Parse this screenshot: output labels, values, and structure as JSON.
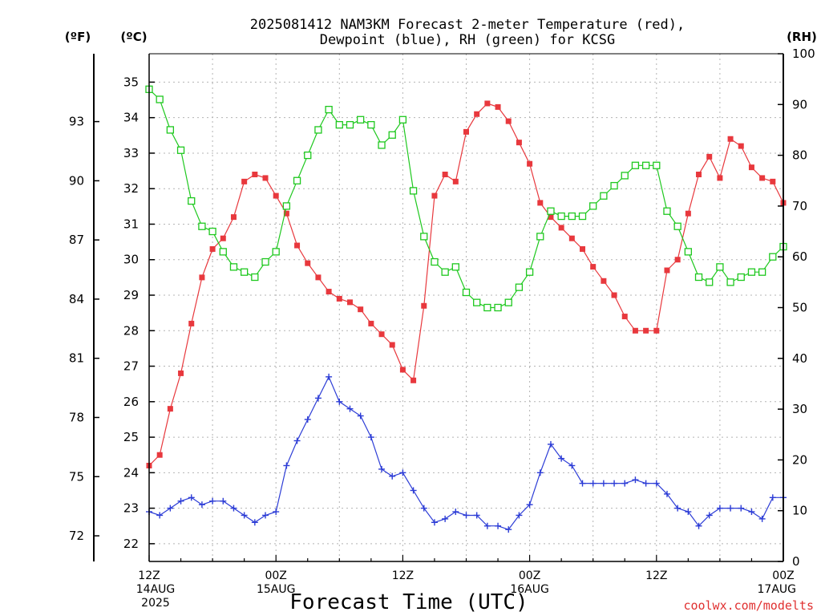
{
  "chart_data": {
    "type": "line",
    "title_lines": [
      "2025081412 NAM3KM Forecast 2-meter Temperature (red),",
      "Dewpoint (blue), RH (green) for KCSG"
    ],
    "xlabel": "Forecast Time (UTC)",
    "unit_labels": {
      "fahrenheit": "(ºF)",
      "celsius": "(ºC)",
      "rh": "(RH)"
    },
    "credit": "coolwx.com/modelts",
    "grid": true,
    "x_range_hours": [
      0,
      60
    ],
    "y_celsius_range": [
      21.5,
      35.8
    ],
    "y_rh_range": [
      0,
      100
    ],
    "celsius_ticks": [
      22,
      23,
      24,
      25,
      26,
      27,
      28,
      29,
      30,
      31,
      32,
      33,
      34,
      35
    ],
    "fahrenheit_ticks": [
      72,
      75,
      78,
      81,
      84,
      87,
      90,
      93
    ],
    "rh_ticks": [
      0,
      10,
      20,
      30,
      40,
      50,
      60,
      70,
      80,
      90,
      100
    ],
    "x_ticks": [
      {
        "hour": 0,
        "lines": [
          "12Z",
          "14AUG",
          "2025"
        ]
      },
      {
        "hour": 12,
        "lines": [
          "00Z",
          "15AUG"
        ]
      },
      {
        "hour": 24,
        "lines": [
          "12Z"
        ]
      },
      {
        "hour": 36,
        "lines": [
          "00Z",
          "16AUG"
        ]
      },
      {
        "hour": 48,
        "lines": [
          "12Z"
        ]
      },
      {
        "hour": 60,
        "lines": [
          "00Z",
          "17AUG"
        ]
      }
    ],
    "series": [
      {
        "name": "Temperature",
        "color": "#e8383d",
        "axis": "celsius",
        "marker": "filled-square",
        "x": [
          0,
          1,
          2,
          3,
          4,
          5,
          6,
          7,
          8,
          9,
          10,
          11,
          12,
          13,
          14,
          15,
          16,
          17,
          18,
          19,
          20,
          21,
          22,
          23,
          24,
          25,
          26,
          27,
          28,
          29,
          30,
          31,
          32,
          33,
          34,
          35,
          36,
          37,
          38,
          39,
          40,
          41,
          42,
          43,
          44,
          45,
          46,
          47,
          48,
          49,
          50,
          51,
          52,
          53,
          54,
          55,
          56,
          57,
          58,
          59,
          60
        ],
        "values": [
          24.2,
          24.5,
          25.8,
          26.8,
          28.2,
          29.5,
          30.3,
          30.6,
          31.2,
          32.2,
          32.4,
          32.3,
          31.8,
          31.3,
          30.4,
          29.9,
          29.5,
          29.1,
          28.9,
          28.8,
          28.6,
          28.2,
          27.9,
          27.6,
          26.9,
          26.6,
          28.7,
          31.8,
          32.4,
          32.2,
          33.6,
          34.1,
          34.4,
          34.3,
          33.9,
          33.3,
          32.7,
          31.6,
          31.2,
          30.9,
          30.6,
          30.3,
          29.8,
          29.4,
          29.0,
          28.4,
          28.0,
          28.0,
          28.0,
          29.7,
          30.0,
          31.3,
          32.4,
          32.9,
          32.3,
          33.4,
          33.2,
          32.6,
          32.3,
          32.2,
          31.6
        ]
      },
      {
        "name": "Dewpoint",
        "color": "#2c3cd6",
        "axis": "celsius",
        "marker": "plus",
        "x": [
          0,
          1,
          2,
          3,
          4,
          5,
          6,
          7,
          8,
          9,
          10,
          11,
          12,
          13,
          14,
          15,
          16,
          17,
          18,
          19,
          20,
          21,
          22,
          23,
          24,
          25,
          26,
          27,
          28,
          29,
          30,
          31,
          32,
          33,
          34,
          35,
          36,
          37,
          38,
          39,
          40,
          41,
          42,
          43,
          44,
          45,
          46,
          47,
          48,
          49,
          50,
          51,
          52,
          53,
          54,
          55,
          56,
          57,
          58,
          59,
          60
        ],
        "values": [
          22.9,
          22.8,
          23.0,
          23.2,
          23.3,
          23.1,
          23.2,
          23.2,
          23.0,
          22.8,
          22.6,
          22.8,
          22.9,
          24.2,
          24.9,
          25.5,
          26.1,
          26.7,
          26.0,
          25.8,
          25.6,
          25.0,
          24.1,
          23.9,
          24.0,
          23.5,
          23.0,
          22.6,
          22.7,
          22.9,
          22.8,
          22.8,
          22.5,
          22.5,
          22.4,
          22.8,
          23.1,
          24.0,
          24.8,
          24.4,
          24.2,
          23.7,
          23.7,
          23.7,
          23.7,
          23.7,
          23.8,
          23.7,
          23.7,
          23.4,
          23.0,
          22.9,
          22.5,
          22.8,
          23.0,
          23.0,
          23.0,
          22.9,
          22.7,
          23.3,
          23.3
        ]
      },
      {
        "name": "RH",
        "color": "#1ec81e",
        "axis": "rh",
        "marker": "open-square",
        "x": [
          0,
          1,
          2,
          3,
          4,
          5,
          6,
          7,
          8,
          9,
          10,
          11,
          12,
          13,
          14,
          15,
          16,
          17,
          18,
          19,
          20,
          21,
          22,
          23,
          24,
          25,
          26,
          27,
          28,
          29,
          30,
          31,
          32,
          33,
          34,
          35,
          36,
          37,
          38,
          39,
          40,
          41,
          42,
          43,
          44,
          45,
          46,
          47,
          48,
          49,
          50,
          51,
          52,
          53,
          54,
          55,
          56,
          57,
          58,
          59,
          60
        ],
        "values": [
          93,
          91,
          85,
          81,
          71,
          66,
          65,
          61,
          58,
          57,
          56,
          59,
          61,
          70,
          75,
          80,
          85,
          89,
          86,
          86,
          87,
          86,
          82,
          84,
          87,
          73,
          64,
          59,
          57,
          58,
          53,
          51,
          50,
          50,
          51,
          54,
          57,
          64,
          69,
          68,
          68,
          68,
          70,
          72,
          74,
          76,
          78,
          78,
          78,
          69,
          66,
          61,
          56,
          55,
          58,
          55,
          56,
          57,
          57,
          60,
          62
        ]
      }
    ]
  }
}
